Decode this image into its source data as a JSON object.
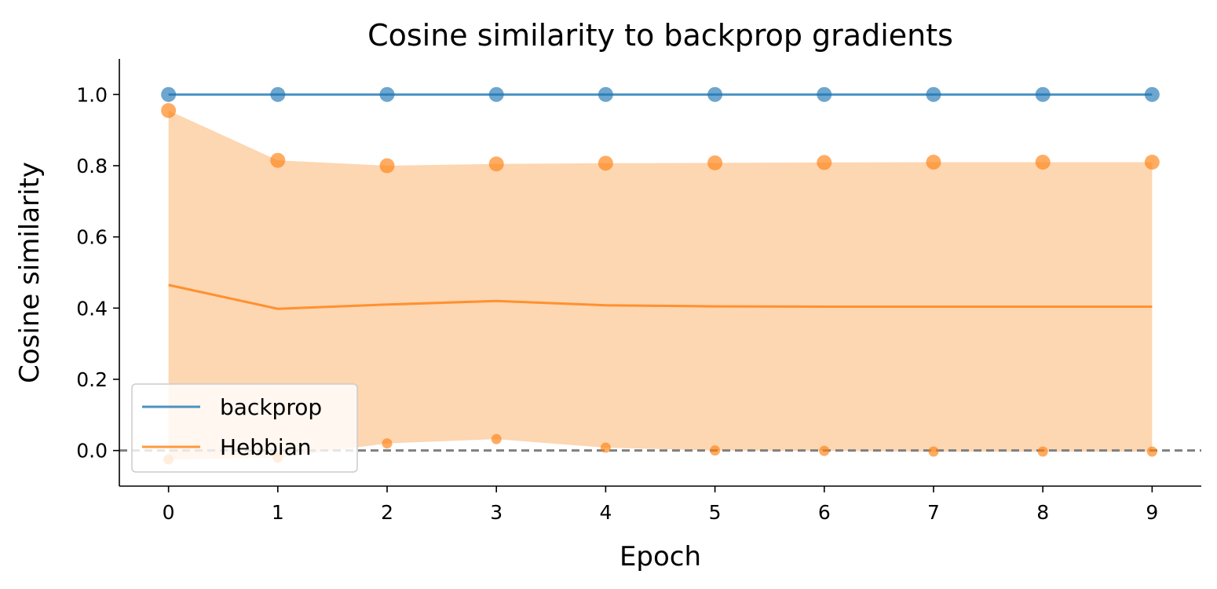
{
  "chart_data": {
    "type": "line",
    "title": "Cosine similarity to backprop gradients",
    "xlabel": "Epoch",
    "ylabel": "Cosine similarity",
    "xlim": [
      -0.45,
      9.45
    ],
    "ylim": [
      -0.1,
      1.1
    ],
    "x": [
      0,
      1,
      2,
      3,
      4,
      5,
      6,
      7,
      8,
      9
    ],
    "x_ticks": [
      "0",
      "1",
      "2",
      "3",
      "4",
      "5",
      "6",
      "7",
      "8",
      "9"
    ],
    "y_ticks": [
      "0.0",
      "0.2",
      "0.4",
      "0.6",
      "0.8",
      "1.0"
    ],
    "grid": false,
    "reference_line": {
      "y": 0.0,
      "style": "dashed",
      "color": "#808080"
    },
    "legend_position": "lower-left",
    "series": [
      {
        "name": "backprop",
        "color": "#1f77b4",
        "mean": [
          1.0,
          1.0,
          1.0,
          1.0,
          1.0,
          1.0,
          1.0,
          1.0,
          1.0,
          1.0
        ],
        "max": [
          1.0,
          1.0,
          1.0,
          1.0,
          1.0,
          1.0,
          1.0,
          1.0,
          1.0,
          1.0
        ],
        "min": [
          1.0,
          1.0,
          1.0,
          1.0,
          1.0,
          1.0,
          1.0,
          1.0,
          1.0,
          1.0
        ]
      },
      {
        "name": "Hebbian",
        "color": "#ff7f0e",
        "fill_color": "#fdd6b2",
        "mean": [
          0.465,
          0.398,
          0.41,
          0.42,
          0.408,
          0.405,
          0.404,
          0.404,
          0.404,
          0.404
        ],
        "max": [
          0.955,
          0.815,
          0.8,
          0.805,
          0.807,
          0.808,
          0.809,
          0.81,
          0.81,
          0.81
        ],
        "min": [
          -0.025,
          -0.02,
          0.02,
          0.032,
          0.008,
          0.0,
          -0.001,
          -0.003,
          -0.003,
          -0.003
        ]
      }
    ]
  }
}
